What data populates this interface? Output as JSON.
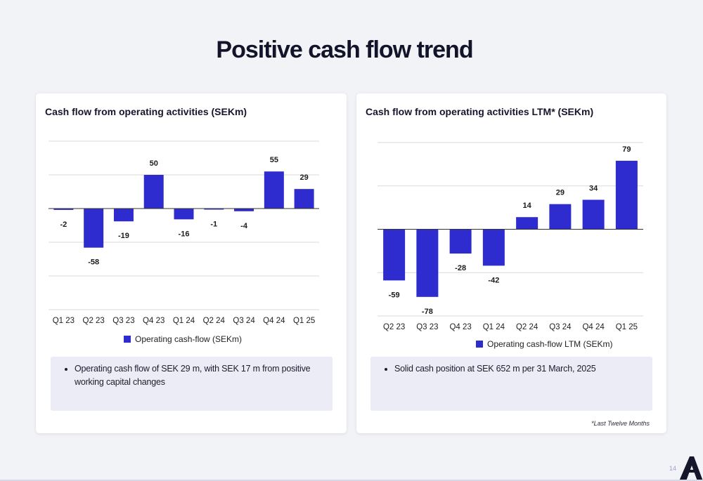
{
  "page": {
    "title": "Positive cash flow trend",
    "page_number": "14",
    "logo_icon": "brand-a-logo-icon"
  },
  "colors": {
    "bar": "#2e2ccf",
    "grid": "#d9d9d9",
    "baseline": "#333333",
    "label": "#1b1b1b"
  },
  "left_card": {
    "title": "Cash flow from operating activities (SEKm)",
    "notes": [
      "Operating cash flow of SEK 29 m, with SEK 17 m from positive working capital changes"
    ]
  },
  "right_card": {
    "title": "Cash flow from operating activities LTM* (SEKm)",
    "notes": [
      "Solid cash position at SEK 652 m per 31 March, 2025"
    ],
    "footnote": "*Last Twelve Months"
  },
  "chart_data": [
    {
      "type": "bar",
      "title": "Cash flow from operating activities (SEKm)",
      "categories": [
        "Q1 23",
        "Q2 23",
        "Q3 23",
        "Q4 23",
        "Q1 24",
        "Q2 24",
        "Q3 24",
        "Q4 24",
        "Q1 25"
      ],
      "series": [
        {
          "name": "Operating cash-flow (SEKm)",
          "values": [
            -2,
            -58,
            -19,
            50,
            -16,
            -1,
            -4,
            55,
            29
          ]
        }
      ],
      "ylim": [
        -150,
        100
      ],
      "grid": true,
      "legend": "bottom",
      "data_labels": true
    },
    {
      "type": "bar",
      "title": "Cash flow from operating activities LTM* (SEKm)",
      "categories": [
        "Q2 23",
        "Q3 23",
        "Q4 23",
        "Q1 24",
        "Q2 24",
        "Q3 24",
        "Q4 24",
        "Q1 25"
      ],
      "series": [
        {
          "name": "Operating cash-flow LTM (SEKm)",
          "values": [
            -59,
            -78,
            -28,
            -42,
            14,
            29,
            34,
            79
          ]
        }
      ],
      "ylim": [
        -100,
        100
      ],
      "grid": true,
      "legend": "bottom",
      "data_labels": true
    }
  ]
}
